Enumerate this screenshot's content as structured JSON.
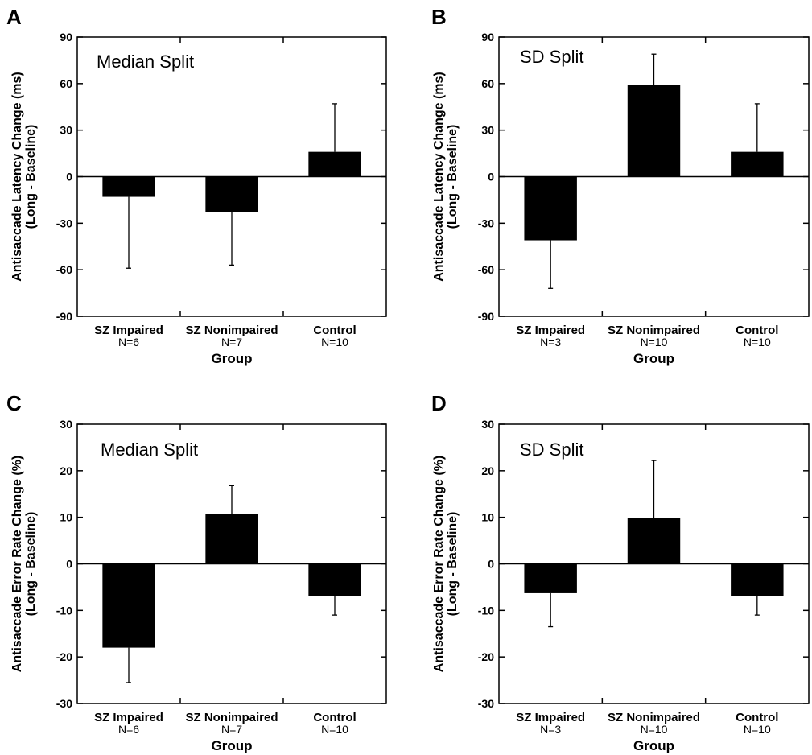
{
  "chart_data": [
    {
      "panel": "A",
      "type": "bar",
      "title": "Median Split",
      "categories": [
        "SZ Impaired",
        "SZ Nonimpaired",
        "Control"
      ],
      "category_n": [
        "N=6",
        "N=7",
        "N=10"
      ],
      "values": [
        -13,
        -23,
        16
      ],
      "error_bars": [
        -59,
        -57,
        47
      ],
      "xlabel": "Group",
      "ylabel": [
        "Antisaccade Latency Change (ms)",
        "(Long - Baseline)"
      ],
      "ylim": [
        -90,
        90
      ],
      "yticks": [
        -90,
        -60,
        -30,
        0,
        30,
        60,
        90
      ]
    },
    {
      "panel": "B",
      "type": "bar",
      "title": "SD Split",
      "categories": [
        "SZ Impaired",
        "SZ Nonimpaired",
        "Control"
      ],
      "category_n": [
        "N=3",
        "N=10",
        "N=10"
      ],
      "values": [
        -41,
        59,
        16
      ],
      "error_bars": [
        -72,
        79,
        47
      ],
      "xlabel": "Group",
      "ylabel": [
        "Antisaccade Latency Change (ms)",
        "(Long - Baseline)"
      ],
      "ylim": [
        -90,
        90
      ],
      "yticks": [
        -90,
        -60,
        -30,
        0,
        30,
        60,
        90
      ]
    },
    {
      "panel": "C",
      "type": "bar",
      "title": "Median Split",
      "categories": [
        "SZ Impaired",
        "SZ Nonimpaired",
        "Control"
      ],
      "category_n": [
        "N=6",
        "N=7",
        "N=10"
      ],
      "values": [
        -18,
        10.8,
        -7
      ],
      "error_bars": [
        -25.5,
        16.8,
        -11
      ],
      "xlabel": "Group",
      "ylabel": [
        "Antisaccade Error Rate Change (%)",
        "(Long - Baseline)"
      ],
      "ylim": [
        -30,
        30
      ],
      "yticks": [
        -30,
        -20,
        -10,
        0,
        10,
        20,
        30
      ]
    },
    {
      "panel": "D",
      "type": "bar",
      "title": "SD Split",
      "categories": [
        "SZ Impaired",
        "SZ Nonimpaired",
        "Control"
      ],
      "category_n": [
        "N=3",
        "N=10",
        "N=10"
      ],
      "values": [
        -6.3,
        9.8,
        -7
      ],
      "error_bars": [
        -13.5,
        22.2,
        -11
      ],
      "xlabel": "Group",
      "ylabel": [
        "Antisaccade Error Rate Change (%)",
        "(Long - Baseline)"
      ],
      "ylim": [
        -30,
        30
      ],
      "yticks": [
        -30,
        -20,
        -10,
        0,
        10,
        20,
        30
      ]
    }
  ],
  "colors": {
    "bar": "#000000",
    "axis": "#000000",
    "background": "#ffffff"
  }
}
